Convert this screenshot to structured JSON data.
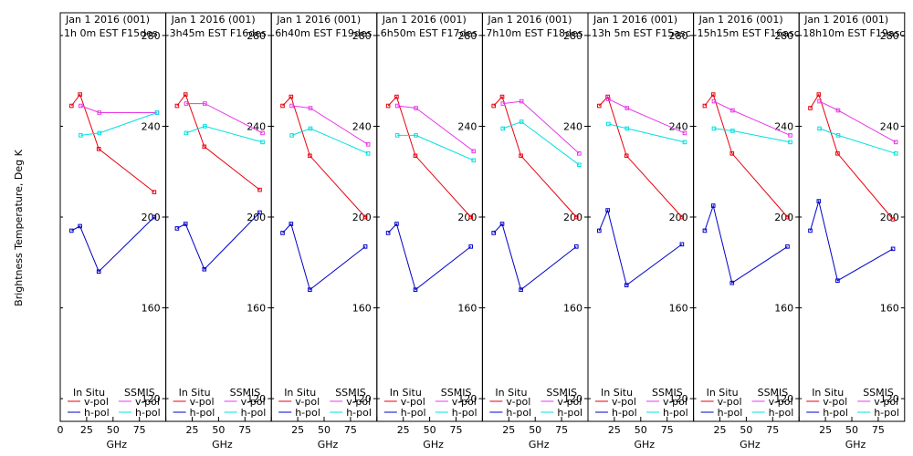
{
  "ylabel": "Brightness Temperature, Deg K",
  "xlabel": "GHz",
  "legend": {
    "left_heading": "In Situ",
    "right_heading": "SSMIS",
    "vpol": "v-pol",
    "hpol": "h-pol"
  },
  "colors": {
    "insitu_v": "#e8000c",
    "insitu_h": "#0000c8",
    "ssmis_v": "#e838e8",
    "ssmis_h": "#00e0e0",
    "frame": "#000000"
  },
  "chart_data": [
    {
      "type": "line",
      "title": "Jan 1 2016 (001)",
      "subtitle": "1h 0m EST F15des",
      "xlim": [
        0,
        100
      ],
      "ylim": [
        110,
        290
      ],
      "x_ticks": [
        0,
        25,
        50,
        75
      ],
      "x_tick_labels": [
        "0",
        "25",
        "50",
        "75"
      ],
      "y_ticks": [
        120,
        160,
        200,
        240,
        280
      ],
      "series": [
        {
          "name": "In Situ v-pol",
          "x": [
            10.65,
            18.7,
            36.5,
            89
          ],
          "y": [
            249,
            254,
            230,
            211
          ]
        },
        {
          "name": "In Situ h-pol",
          "x": [
            10.65,
            18.7,
            36.5,
            89
          ],
          "y": [
            194,
            196,
            176,
            200
          ]
        },
        {
          "name": "SSMIS v-pol",
          "x": [
            19.35,
            37,
            91.65
          ],
          "y": [
            249,
            246,
            246
          ]
        },
        {
          "name": "SSMIS h-pol",
          "x": [
            19.35,
            37,
            91.65
          ],
          "y": [
            236,
            237,
            246
          ]
        }
      ]
    },
    {
      "type": "line",
      "title": "Jan 1 2016 (001)",
      "subtitle": "3h45m EST F16des",
      "xlim": [
        0,
        100
      ],
      "ylim": [
        110,
        290
      ],
      "x_ticks": [
        0,
        25,
        50,
        75
      ],
      "x_tick_labels": [
        "",
        "25",
        "50",
        "75"
      ],
      "y_ticks": [
        120,
        160,
        200,
        240,
        280
      ],
      "series": [
        {
          "name": "In Situ v-pol",
          "x": [
            10.65,
            18.7,
            36.5,
            89
          ],
          "y": [
            249,
            254,
            231,
            212
          ]
        },
        {
          "name": "In Situ h-pol",
          "x": [
            10.65,
            18.7,
            36.5,
            89
          ],
          "y": [
            195,
            197,
            177,
            202
          ]
        },
        {
          "name": "SSMIS v-pol",
          "x": [
            19.35,
            37,
            91.65
          ],
          "y": [
            250,
            250,
            237
          ]
        },
        {
          "name": "SSMIS h-pol",
          "x": [
            19.35,
            37,
            91.65
          ],
          "y": [
            237,
            240,
            233
          ]
        }
      ]
    },
    {
      "type": "line",
      "title": "Jan 1 2016 (001)",
      "subtitle": "6h40m EST F19des",
      "xlim": [
        0,
        100
      ],
      "ylim": [
        110,
        290
      ],
      "x_ticks": [
        0,
        25,
        50,
        75
      ],
      "x_tick_labels": [
        "",
        "25",
        "50",
        "75"
      ],
      "y_ticks": [
        120,
        160,
        200,
        240,
        280
      ],
      "series": [
        {
          "name": "In Situ v-pol",
          "x": [
            10.65,
            18.7,
            36.5,
            89
          ],
          "y": [
            249,
            253,
            227,
            200
          ]
        },
        {
          "name": "In Situ h-pol",
          "x": [
            10.65,
            18.7,
            36.5,
            89
          ],
          "y": [
            193,
            197,
            168,
            187
          ]
        },
        {
          "name": "SSMIS v-pol",
          "x": [
            19.35,
            37,
            91.65
          ],
          "y": [
            249,
            248,
            232
          ]
        },
        {
          "name": "SSMIS h-pol",
          "x": [
            19.35,
            37,
            91.65
          ],
          "y": [
            236,
            239,
            228
          ]
        }
      ]
    },
    {
      "type": "line",
      "title": "Jan 1 2016 (001)",
      "subtitle": "6h50m EST F17des",
      "xlim": [
        0,
        100
      ],
      "ylim": [
        110,
        290
      ],
      "x_ticks": [
        0,
        25,
        50,
        75
      ],
      "x_tick_labels": [
        "",
        "25",
        "50",
        "75"
      ],
      "y_ticks": [
        120,
        160,
        200,
        240,
        280
      ],
      "series": [
        {
          "name": "In Situ v-pol",
          "x": [
            10.65,
            18.7,
            36.5,
            89
          ],
          "y": [
            249,
            253,
            227,
            200
          ]
        },
        {
          "name": "In Situ h-pol",
          "x": [
            10.65,
            18.7,
            36.5,
            89
          ],
          "y": [
            193,
            197,
            168,
            187
          ]
        },
        {
          "name": "SSMIS v-pol",
          "x": [
            19.35,
            37,
            91.65
          ],
          "y": [
            249,
            248,
            229
          ]
        },
        {
          "name": "SSMIS h-pol",
          "x": [
            19.35,
            37,
            91.65
          ],
          "y": [
            236,
            236,
            225
          ]
        }
      ]
    },
    {
      "type": "line",
      "title": "Jan 1 2016 (001)",
      "subtitle": "7h10m EST F18des",
      "xlim": [
        0,
        100
      ],
      "ylim": [
        110,
        290
      ],
      "x_ticks": [
        0,
        25,
        50,
        75
      ],
      "x_tick_labels": [
        "",
        "25",
        "50",
        "75"
      ],
      "y_ticks": [
        120,
        160,
        200,
        240,
        280
      ],
      "series": [
        {
          "name": "In Situ v-pol",
          "x": [
            10.65,
            18.7,
            36.5,
            89
          ],
          "y": [
            249,
            253,
            227,
            200
          ]
        },
        {
          "name": "In Situ h-pol",
          "x": [
            10.65,
            18.7,
            36.5,
            89
          ],
          "y": [
            193,
            197,
            168,
            187
          ]
        },
        {
          "name": "SSMIS v-pol",
          "x": [
            19.35,
            37,
            91.65
          ],
          "y": [
            250,
            251,
            228
          ]
        },
        {
          "name": "SSMIS h-pol",
          "x": [
            19.35,
            37,
            91.65
          ],
          "y": [
            239,
            242,
            223
          ]
        }
      ]
    },
    {
      "type": "line",
      "title": "Jan 1 2016 (001)",
      "subtitle": "13h 5m EST F15asc",
      "xlim": [
        0,
        100
      ],
      "ylim": [
        110,
        290
      ],
      "x_ticks": [
        0,
        25,
        50,
        75
      ],
      "x_tick_labels": [
        "",
        "25",
        "50",
        "75"
      ],
      "y_ticks": [
        120,
        160,
        200,
        240,
        280
      ],
      "series": [
        {
          "name": "In Situ v-pol",
          "x": [
            10.65,
            18.7,
            36.5,
            89
          ],
          "y": [
            249,
            253,
            227,
            200
          ]
        },
        {
          "name": "In Situ h-pol",
          "x": [
            10.65,
            18.7,
            36.5,
            89
          ],
          "y": [
            194,
            203,
            170,
            188
          ]
        },
        {
          "name": "SSMIS v-pol",
          "x": [
            19.35,
            37,
            91.65
          ],
          "y": [
            252,
            248,
            237
          ]
        },
        {
          "name": "SSMIS h-pol",
          "x": [
            19.35,
            37,
            91.65
          ],
          "y": [
            241,
            239,
            233
          ]
        }
      ]
    },
    {
      "type": "line",
      "title": "Jan 1 2016 (001)",
      "subtitle": "15h15m EST F16asc",
      "xlim": [
        0,
        100
      ],
      "ylim": [
        110,
        290
      ],
      "x_ticks": [
        0,
        25,
        50,
        75
      ],
      "x_tick_labels": [
        "",
        "25",
        "50",
        "75"
      ],
      "y_ticks": [
        120,
        160,
        200,
        240,
        280
      ],
      "series": [
        {
          "name": "In Situ v-pol",
          "x": [
            10.65,
            18.7,
            36.5,
            89
          ],
          "y": [
            249,
            254,
            228,
            200
          ]
        },
        {
          "name": "In Situ h-pol",
          "x": [
            10.65,
            18.7,
            36.5,
            89
          ],
          "y": [
            194,
            205,
            171,
            187
          ]
        },
        {
          "name": "SSMIS v-pol",
          "x": [
            19.35,
            37,
            91.65
          ],
          "y": [
            251,
            247,
            236
          ]
        },
        {
          "name": "SSMIS h-pol",
          "x": [
            19.35,
            37,
            91.65
          ],
          "y": [
            239,
            238,
            233
          ]
        }
      ]
    },
    {
      "type": "line",
      "title": "Jan 1 2016 (001)",
      "subtitle": "18h10m EST F19asc",
      "xlim": [
        0,
        100
      ],
      "ylim": [
        110,
        290
      ],
      "x_ticks": [
        0,
        25,
        50,
        75
      ],
      "x_tick_labels": [
        "",
        "25",
        "50",
        "75"
      ],
      "y_ticks": [
        120,
        160,
        200,
        240,
        280
      ],
      "series": [
        {
          "name": "In Situ v-pol",
          "x": [
            10.65,
            18.7,
            36.5,
            89
          ],
          "y": [
            248,
            254,
            228,
            199
          ]
        },
        {
          "name": "In Situ h-pol",
          "x": [
            10.65,
            18.7,
            36.5,
            89
          ],
          "y": [
            194,
            207,
            172,
            186
          ]
        },
        {
          "name": "SSMIS v-pol",
          "x": [
            19.35,
            37,
            91.65
          ],
          "y": [
            251,
            247,
            233
          ]
        },
        {
          "name": "SSMIS h-pol",
          "x": [
            19.35,
            37,
            91.65
          ],
          "y": [
            239,
            236,
            228
          ]
        }
      ]
    }
  ]
}
